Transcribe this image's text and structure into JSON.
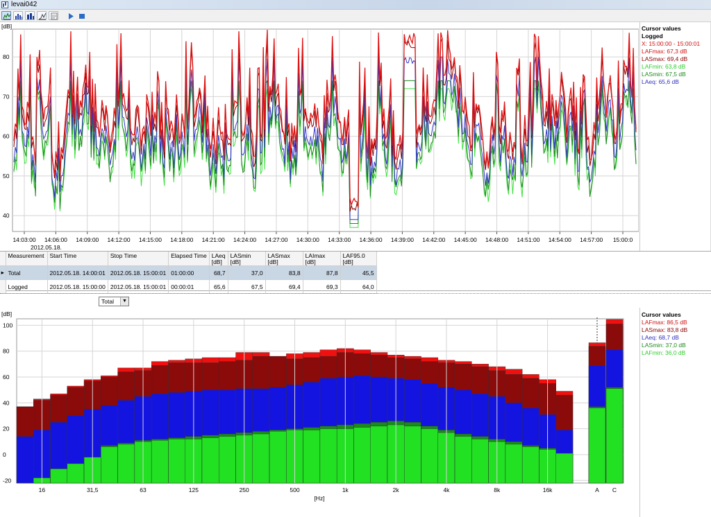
{
  "window": {
    "title": "levai042"
  },
  "toolbar": {
    "icons": [
      "time-history-icon",
      "spectrum-icon",
      "bar-chart-icon",
      "statistics-icon",
      "report-icon",
      "play-icon",
      "stop-icon"
    ]
  },
  "time_chart": {
    "unit_label": "[dB]",
    "date_label": "2012.05.18."
  },
  "cursor_top": {
    "title": "Cursor values",
    "subtitle": "Logged",
    "rows": [
      {
        "text": "X: 15:00:00 - 15:00:01",
        "color": "#d01010"
      },
      {
        "text": "LAFmax: 67,3 dB",
        "color": "#d01010"
      },
      {
        "text": "LASmax: 69,4 dB",
        "color": "#8b0000"
      },
      {
        "text": "LAFmin: 63,8 dB",
        "color": "#2ecc2e"
      },
      {
        "text": "LASmin: 67,5 dB",
        "color": "#1e8a1e"
      },
      {
        "text": "LAeq: 65,6 dB",
        "color": "#3030c0"
      }
    ]
  },
  "table": {
    "headers": [
      [
        "Measurement"
      ],
      [
        "Start Time"
      ],
      [
        "Stop Time"
      ],
      [
        "Elapsed Time"
      ],
      [
        "LAeq",
        "[dB]"
      ],
      [
        "LASmin",
        "[dB]"
      ],
      [
        "LASmax",
        "[dB]"
      ],
      [
        "LAImax",
        "[dB]"
      ],
      [
        "LAF95.0",
        "[dB]"
      ]
    ],
    "rows": [
      [
        "Total",
        "2012.05.18. 14:00:01",
        "2012.05.18. 15:00:01",
        "01:00:00",
        "68,7",
        "37,0",
        "83,8",
        "87,8",
        "45,5"
      ],
      [
        "Logged",
        "2012.05.18. 15:00:00",
        "2012.05.18. 15:00:01",
        "00:00:01",
        "65,6",
        "67,5",
        "69,4",
        "69,3",
        "64,0"
      ]
    ]
  },
  "selector": {
    "value": "Total"
  },
  "spectrum": {
    "unit_label": "[dB]",
    "x_unit": "[Hz]"
  },
  "cursor_bottom": {
    "title": "Cursor values",
    "rows": [
      {
        "text": "LAFmax: 86,5 dB",
        "color": "#d01010"
      },
      {
        "text": "LASmax: 83,8 dB",
        "color": "#8b0000"
      },
      {
        "text": "LAeq: 68,7 dB",
        "color": "#3030c0"
      },
      {
        "text": "LASmin: 37,0 dB",
        "color": "#1e8a1e"
      },
      {
        "text": "LAFmin: 36,0 dB",
        "color": "#2ecc2e"
      }
    ]
  },
  "chart_data": [
    {
      "type": "line",
      "ylabel": "[dB]",
      "ylim": [
        36,
        87
      ],
      "yticks": [
        40,
        50,
        60,
        70,
        80
      ],
      "x_range": [
        "14:00:01",
        "15:00:01"
      ],
      "xticks": [
        "14:03:00",
        "14:06:00",
        "14:09:00",
        "14:12:00",
        "14:15:00",
        "14:18:00",
        "14:21:00",
        "14:24:00",
        "14:27:00",
        "14:30:00",
        "14:33:00",
        "14:36:00",
        "14:39:00",
        "14:42:00",
        "14:45:00",
        "14:48:00",
        "14:51:00",
        "14:54:00",
        "14:57:00",
        "15:00:0"
      ],
      "grid": true,
      "series": [
        {
          "name": "LAFmax",
          "color": "#e01414",
          "min": 42,
          "max": 87
        },
        {
          "name": "LASmax",
          "color": "#8b0000",
          "min": 41,
          "max": 85
        },
        {
          "name": "LAeq",
          "color": "#3535c8",
          "min": 39,
          "max": 80
        },
        {
          "name": "LASmin",
          "color": "#1e8a1e",
          "min": 38,
          "max": 74
        },
        {
          "name": "LAFmin",
          "color": "#3ee03e",
          "min": 37,
          "max": 72
        }
      ],
      "notable": [
        {
          "time": "14:33:00",
          "min": 37
        },
        {
          "time": "14:38:30",
          "max": 84
        }
      ]
    },
    {
      "type": "bar",
      "ylabel": "[dB]",
      "xlabel": "[Hz]",
      "ylim": [
        -22,
        105
      ],
      "yticks": [
        -20,
        0,
        20,
        40,
        60,
        80,
        100
      ],
      "grid": true,
      "x_tick_labels": [
        "16",
        "31,5",
        "63",
        "125",
        "250",
        "500",
        "1k",
        "2k",
        "4k",
        "8k",
        "16k"
      ],
      "categories": [
        "12.5",
        "16",
        "20",
        "25",
        "31.5",
        "40",
        "50",
        "63",
        "80",
        "100",
        "125",
        "160",
        "200",
        "250",
        "315",
        "400",
        "500",
        "630",
        "800",
        "1k",
        "1.25k",
        "1.6k",
        "2k",
        "2.5k",
        "3.15k",
        "4k",
        "5k",
        "6.3k",
        "8k",
        "10k",
        "12.5k",
        "16k",
        "20k"
      ],
      "series": [
        {
          "name": "LAFmin",
          "color": "#22e022",
          "values": [
            -22,
            -18,
            -11,
            -7,
            -2,
            6,
            8,
            10,
            11,
            12,
            12,
            13,
            14,
            15,
            16,
            18,
            19,
            19,
            20,
            20,
            21,
            22,
            23,
            22,
            20,
            17,
            14,
            12,
            10,
            8,
            6,
            4,
            1
          ]
        },
        {
          "name": "LASmin",
          "color": "#1a8a1a",
          "values": [
            -22,
            -18,
            -11,
            -7,
            -2,
            7,
            9,
            11,
            12,
            13,
            14,
            15,
            16,
            17,
            18,
            19,
            20,
            21,
            22,
            23,
            24,
            25,
            26,
            25,
            22,
            19,
            16,
            14,
            12,
            10,
            7,
            5,
            1
          ]
        },
        {
          "name": "LAeq",
          "color": "#1414e0",
          "values": [
            14,
            19,
            25,
            30,
            35,
            38,
            42,
            45,
            47,
            48,
            49,
            50,
            50,
            51,
            51,
            52,
            54,
            56,
            59,
            60,
            61,
            60,
            59,
            58,
            55,
            52,
            50,
            47,
            45,
            40,
            36,
            31,
            19
          ]
        },
        {
          "name": "LASmax",
          "color": "#8b0a0a",
          "values": [
            37,
            42,
            46,
            52,
            57,
            60,
            64,
            65,
            69,
            71,
            71,
            71,
            72,
            73,
            76,
            76,
            74,
            75,
            76,
            79,
            78,
            77,
            75,
            74,
            72,
            71,
            70,
            68,
            65,
            62,
            59,
            55,
            46
          ]
        },
        {
          "name": "LAFmax",
          "color": "#f01010",
          "values": [
            37,
            43,
            47,
            53,
            58,
            61,
            67,
            67,
            72,
            73,
            74,
            75,
            75,
            79,
            79,
            76,
            78,
            79,
            81,
            82,
            81,
            79,
            77,
            76,
            75,
            73,
            72,
            70,
            68,
            66,
            62,
            58,
            49
          ]
        }
      ],
      "summary_bars": [
        {
          "label": "A",
          "LAFmin": 36.0,
          "LASmin": 37.0,
          "LAeq": 68.7,
          "LASmax": 83.8,
          "LAFmax": 86.5
        },
        {
          "label": "C",
          "LAFmin": 51.0,
          "LASmin": 52.0,
          "LAeq": 81.0,
          "LASmax": 101.0,
          "LAFmax": 104.5
        }
      ]
    }
  ]
}
